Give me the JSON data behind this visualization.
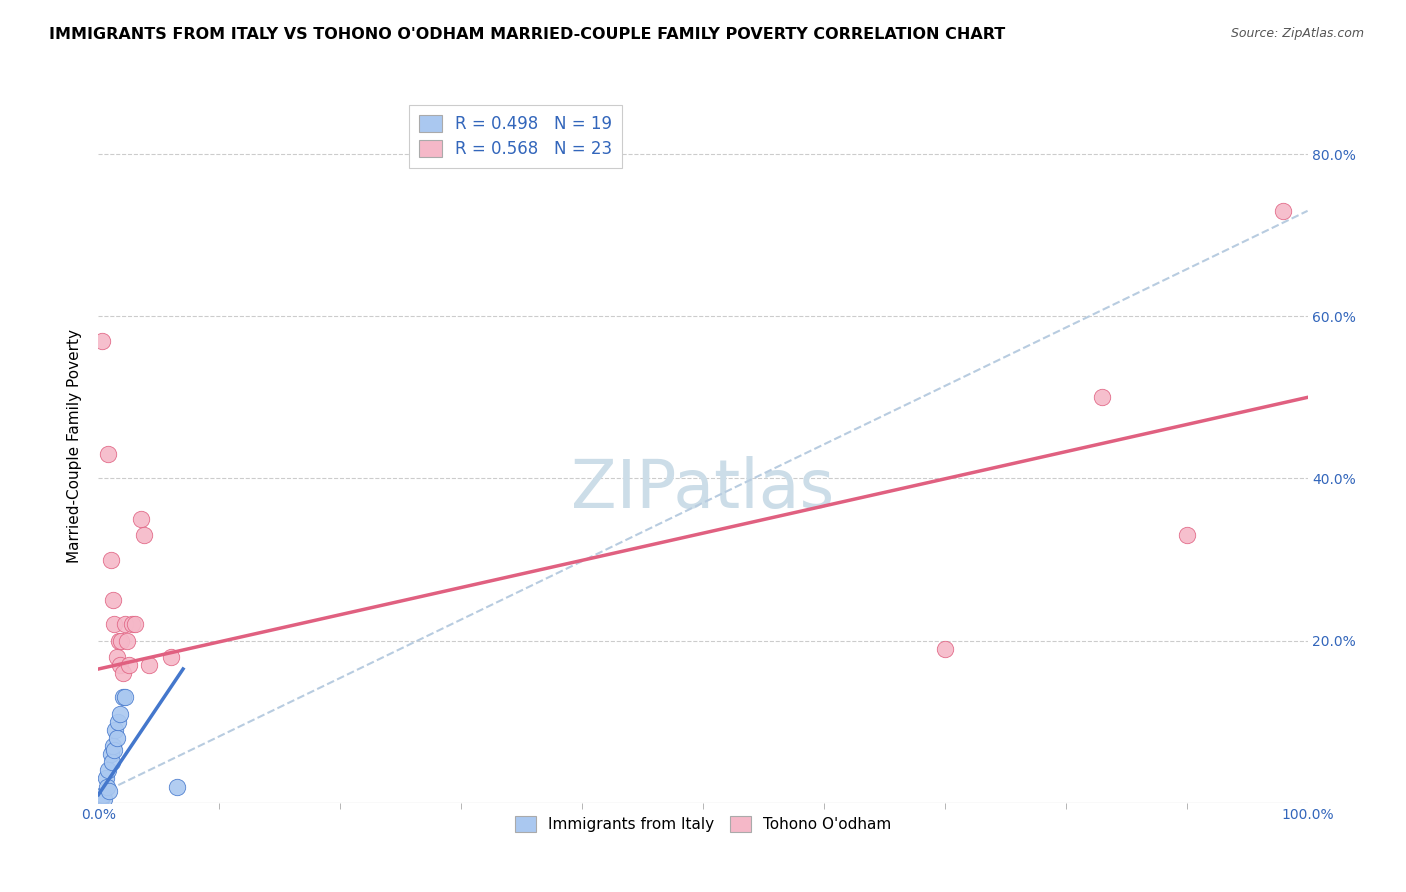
{
  "title": "IMMIGRANTS FROM ITALY VS TOHONO O'ODHAM MARRIED-COUPLE FAMILY POVERTY CORRELATION CHART",
  "source": "Source: ZipAtlas.com",
  "ylabel": "Married-Couple Family Poverty",
  "xlim": [
    0.0,
    1.0
  ],
  "ylim": [
    0.0,
    0.88
  ],
  "legend_entries": [
    {
      "label": "R = 0.498   N = 19",
      "facecolor": "#aac8f0",
      "edgecolor": "#6699cc"
    },
    {
      "label": "R = 0.568   N = 23",
      "facecolor": "#f5b8c8",
      "edgecolor": "#e07090"
    }
  ],
  "legend_label_bottom": [
    "Immigrants from Italy",
    "Tohono O'odham"
  ],
  "watermark": "ZIPatlas",
  "italy_scatter": [
    [
      0.002,
      0.005
    ],
    [
      0.003,
      0.008
    ],
    [
      0.004,
      0.01
    ],
    [
      0.005,
      0.005
    ],
    [
      0.006,
      0.03
    ],
    [
      0.007,
      0.02
    ],
    [
      0.008,
      0.04
    ],
    [
      0.009,
      0.015
    ],
    [
      0.01,
      0.06
    ],
    [
      0.011,
      0.05
    ],
    [
      0.012,
      0.07
    ],
    [
      0.013,
      0.065
    ],
    [
      0.014,
      0.09
    ],
    [
      0.015,
      0.08
    ],
    [
      0.016,
      0.1
    ],
    [
      0.018,
      0.11
    ],
    [
      0.02,
      0.13
    ],
    [
      0.022,
      0.13
    ],
    [
      0.065,
      0.02
    ]
  ],
  "tohono_scatter": [
    [
      0.003,
      0.57
    ],
    [
      0.008,
      0.43
    ],
    [
      0.01,
      0.3
    ],
    [
      0.012,
      0.25
    ],
    [
      0.013,
      0.22
    ],
    [
      0.015,
      0.18
    ],
    [
      0.017,
      0.2
    ],
    [
      0.018,
      0.17
    ],
    [
      0.019,
      0.2
    ],
    [
      0.02,
      0.16
    ],
    [
      0.022,
      0.22
    ],
    [
      0.024,
      0.2
    ],
    [
      0.025,
      0.17
    ],
    [
      0.028,
      0.22
    ],
    [
      0.03,
      0.22
    ],
    [
      0.035,
      0.35
    ],
    [
      0.038,
      0.33
    ],
    [
      0.042,
      0.17
    ],
    [
      0.06,
      0.18
    ],
    [
      0.7,
      0.19
    ],
    [
      0.83,
      0.5
    ],
    [
      0.9,
      0.33
    ],
    [
      0.98,
      0.73
    ]
  ],
  "italy_line_x": [
    0.0,
    0.07
  ],
  "italy_line_y": [
    0.01,
    0.165
  ],
  "tohono_line_x": [
    0.0,
    1.0
  ],
  "tohono_line_y": [
    0.165,
    0.5
  ],
  "dashed_line_x": [
    0.0,
    1.0
  ],
  "dashed_line_y": [
    0.01,
    0.73
  ],
  "italy_color": "#4477cc",
  "tohono_color": "#e06080",
  "italy_scatter_color": "#aac8f0",
  "tohono_scatter_color": "#f5b8c8",
  "dashed_color": "#b8cce0",
  "grid_color": "#cccccc",
  "background_color": "#ffffff",
  "title_fontsize": 11.5,
  "source_fontsize": 9,
  "watermark_color": "#ccdde8",
  "watermark_fontsize": 48,
  "axis_label_color": "#3366bb",
  "tick_label_color": "#3366bb",
  "xtick_minor": [
    0.1,
    0.2,
    0.3,
    0.4,
    0.5,
    0.6,
    0.7,
    0.8,
    0.9
  ],
  "ytick_values": [
    0.0,
    0.2,
    0.4,
    0.6,
    0.8
  ],
  "ytick_right_labels": [
    "20.0%",
    "40.0%",
    "60.0%",
    "80.0%"
  ]
}
